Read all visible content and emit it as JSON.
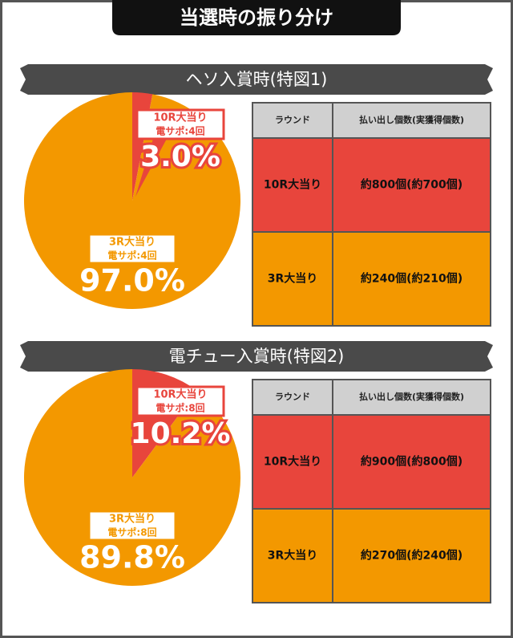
{
  "title": "当選時の振り分け",
  "chart_data": [
    {
      "type": "pie",
      "title": "ヘソ入賞時(特図1)",
      "categories": [
        "10R大当り",
        "3R大当り"
      ],
      "category_notes": [
        "電サポ:4回",
        "電サポ:4回"
      ],
      "values": [
        3.0,
        97.0
      ],
      "value_labels": [
        "3.0%",
        "97.0%"
      ],
      "colors": [
        "#e8453c",
        "#f39800"
      ]
    },
    {
      "type": "pie",
      "title": "電チュー入賞時(特図2)",
      "categories": [
        "10R大当り",
        "3R大当り"
      ],
      "category_notes": [
        "電サポ:8回",
        "電サポ:8回"
      ],
      "values": [
        10.2,
        89.8
      ],
      "value_labels": [
        "10.2%",
        "89.8%"
      ],
      "colors": [
        "#e8453c",
        "#f39800"
      ]
    }
  ],
  "tables": [
    {
      "header": [
        "ラウンド",
        "払い出し個数(実獲得個数)"
      ],
      "rows": [
        [
          "10R大当り",
          "約800個(約700個)"
        ],
        [
          "3R大当り",
          "約240個(約210個)"
        ]
      ]
    },
    {
      "header": [
        "ラウンド",
        "払い出し個数(実獲得個数)"
      ],
      "rows": [
        [
          "10R大当り",
          "約900個(約800個)"
        ],
        [
          "3R大当り",
          "約270個(約240個)"
        ]
      ]
    }
  ]
}
